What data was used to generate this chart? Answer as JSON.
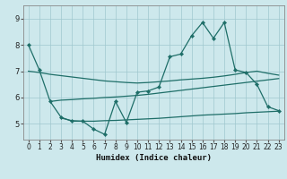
{
  "xlabel": "Humidex (Indice chaleur)",
  "bg_color": "#cde8ec",
  "grid_color": "#a0c8ce",
  "line_color": "#1e6e68",
  "xlim": [
    -0.5,
    23.5
  ],
  "ylim": [
    4.4,
    9.5
  ],
  "yticks": [
    5,
    6,
    7,
    8,
    9
  ],
  "xticks": [
    0,
    1,
    2,
    3,
    4,
    5,
    6,
    7,
    8,
    9,
    10,
    11,
    12,
    13,
    14,
    15,
    16,
    17,
    18,
    19,
    20,
    21,
    22,
    23
  ],
  "line1_x": [
    0,
    1,
    2,
    3,
    4,
    5,
    6,
    7,
    8,
    9,
    10,
    11,
    12,
    13,
    14,
    15,
    16,
    17,
    18,
    19,
    20,
    21,
    22,
    23
  ],
  "line1_y": [
    8.0,
    7.05,
    5.85,
    5.25,
    5.1,
    5.1,
    4.8,
    4.6,
    5.85,
    5.05,
    6.2,
    6.25,
    6.4,
    7.55,
    7.65,
    8.35,
    8.85,
    8.25,
    8.85,
    7.05,
    6.95,
    6.5,
    5.65,
    5.5
  ],
  "line2_x": [
    0,
    1,
    2,
    3,
    4,
    5,
    6,
    7,
    8,
    9,
    10,
    11,
    12,
    13,
    14,
    15,
    16,
    17,
    18,
    19,
    20,
    21,
    22,
    23
  ],
  "line2_y": [
    7.0,
    6.95,
    6.88,
    6.83,
    6.78,
    6.73,
    6.68,
    6.63,
    6.6,
    6.57,
    6.55,
    6.57,
    6.6,
    6.63,
    6.67,
    6.7,
    6.73,
    6.77,
    6.82,
    6.88,
    6.95,
    7.0,
    6.92,
    6.85
  ],
  "line3_x": [
    2,
    3,
    4,
    5,
    6,
    7,
    8,
    9,
    10,
    11,
    12,
    13,
    14,
    15,
    16,
    17,
    18,
    19,
    20,
    21,
    22,
    23
  ],
  "line3_y": [
    5.85,
    5.9,
    5.92,
    5.95,
    5.97,
    6.0,
    6.02,
    6.05,
    6.08,
    6.12,
    6.17,
    6.22,
    6.27,
    6.32,
    6.37,
    6.42,
    6.47,
    6.52,
    6.57,
    6.62,
    6.67,
    6.72
  ],
  "line4_x": [
    3,
    4,
    5,
    6,
    7,
    8,
    9,
    10,
    11,
    12,
    13,
    14,
    15,
    16,
    17,
    18,
    19,
    20,
    21,
    22,
    23
  ],
  "line4_y": [
    5.22,
    5.12,
    5.1,
    5.1,
    5.12,
    5.13,
    5.15,
    5.17,
    5.19,
    5.21,
    5.24,
    5.27,
    5.3,
    5.33,
    5.35,
    5.37,
    5.39,
    5.42,
    5.44,
    5.46,
    5.48
  ]
}
